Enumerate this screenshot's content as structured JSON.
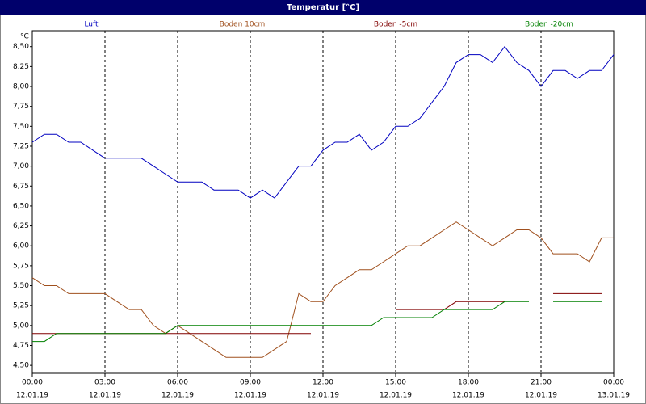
{
  "chart_data": {
    "type": "line",
    "title": "Temperatur [°C]",
    "y_label": "°C",
    "x": [
      0,
      0.5,
      1,
      1.5,
      2,
      2.5,
      3,
      3.5,
      4,
      4.5,
      5,
      5.5,
      6,
      6.5,
      7,
      7.5,
      8,
      8.5,
      9,
      9.5,
      10,
      10.5,
      11,
      11.5,
      12,
      12.5,
      13,
      13.5,
      14,
      14.5,
      15,
      15.5,
      16,
      16.5,
      17,
      17.5,
      18,
      18.5,
      19,
      19.5,
      20,
      20.5,
      21,
      21.5,
      22,
      22.5,
      23,
      23.5,
      24
    ],
    "series": [
      {
        "name": "Luft",
        "color": "#0000c0",
        "values": [
          7.3,
          7.4,
          7.4,
          7.3,
          7.3,
          7.2,
          7.1,
          7.1,
          7.1,
          7.1,
          7.0,
          6.9,
          6.8,
          6.8,
          6.8,
          6.7,
          6.7,
          6.7,
          6.6,
          6.7,
          6.6,
          6.8,
          7.0,
          7.0,
          7.2,
          7.3,
          7.3,
          7.4,
          7.2,
          7.3,
          7.5,
          7.5,
          7.6,
          7.8,
          8.0,
          8.3,
          8.4,
          8.4,
          8.3,
          8.5,
          8.3,
          8.2,
          8.0,
          8.2,
          8.2,
          8.1,
          8.2,
          8.2,
          8.4
        ]
      },
      {
        "name": "Boden 10cm",
        "color": "#a0501e",
        "values": [
          5.6,
          5.5,
          5.5,
          5.4,
          5.4,
          5.4,
          5.4,
          5.3,
          5.2,
          5.2,
          5.0,
          4.9,
          5.0,
          4.9,
          4.8,
          4.7,
          4.6,
          4.6,
          4.6,
          4.6,
          4.7,
          4.8,
          5.4,
          5.3,
          5.3,
          5.5,
          5.6,
          5.7,
          5.7,
          5.8,
          5.9,
          6.0,
          6.0,
          6.1,
          6.2,
          6.3,
          6.2,
          6.1,
          6.0,
          6.1,
          6.2,
          6.2,
          6.1,
          5.9,
          5.9,
          5.9,
          5.8,
          6.1,
          6.1
        ]
      },
      {
        "name": "Boden -5cm",
        "color": "#800000",
        "values": [
          4.9,
          4.9,
          4.9,
          4.9,
          4.9,
          4.9,
          4.9,
          4.9,
          4.9,
          4.9,
          4.9,
          4.9,
          4.9,
          4.9,
          4.9,
          4.9,
          4.9,
          4.9,
          4.9,
          4.9,
          4.9,
          4.9,
          4.9,
          4.9,
          null,
          null,
          null,
          null,
          null,
          null,
          5.2,
          5.2,
          5.2,
          5.2,
          5.2,
          5.3,
          5.3,
          5.3,
          5.3,
          5.3,
          null,
          null,
          null,
          5.4,
          5.4,
          5.4,
          5.4,
          5.4,
          null
        ]
      },
      {
        "name": "Boden -20cm",
        "color": "#008000",
        "values": [
          4.8,
          4.8,
          4.9,
          4.9,
          4.9,
          4.9,
          4.9,
          4.9,
          4.9,
          4.9,
          4.9,
          4.9,
          5.0,
          5.0,
          5.0,
          5.0,
          5.0,
          5.0,
          5.0,
          5.0,
          5.0,
          5.0,
          5.0,
          5.0,
          5.0,
          5.0,
          5.0,
          5.0,
          5.0,
          5.1,
          5.1,
          5.1,
          5.1,
          5.1,
          5.2,
          5.2,
          5.2,
          5.2,
          5.2,
          5.3,
          5.3,
          5.3,
          null,
          5.3,
          5.3,
          5.3,
          5.3,
          5.3,
          null
        ]
      }
    ],
    "xlim": [
      0,
      24
    ],
    "xticks": [
      {
        "value": 0,
        "label": "00:00"
      },
      {
        "value": 3,
        "label": "03:00"
      },
      {
        "value": 6,
        "label": "06:00"
      },
      {
        "value": 9,
        "label": "09:00"
      },
      {
        "value": 12,
        "label": "12:00"
      },
      {
        "value": 15,
        "label": "15:00"
      },
      {
        "value": 18,
        "label": "18:00"
      },
      {
        "value": 21,
        "label": "21:00"
      },
      {
        "value": 24,
        "label": "00:00"
      }
    ],
    "xtick_dates": [
      "12.01.19",
      "12.01.19",
      "12.01.19",
      "12.01.19",
      "12.01.19",
      "12.01.19",
      "12.01.19",
      "12.01.19",
      "13.01.19"
    ],
    "ylim": [
      4.4,
      8.7
    ],
    "yticks": [
      {
        "value": 4.5,
        "label": "4,50"
      },
      {
        "value": 4.75,
        "label": "4,75"
      },
      {
        "value": 5,
        "label": "5,00"
      },
      {
        "value": 5.25,
        "label": "5,25"
      },
      {
        "value": 5.5,
        "label": "5,50"
      },
      {
        "value": 5.75,
        "label": "5,75"
      },
      {
        "value": 6,
        "label": "6,00"
      },
      {
        "value": 6.25,
        "label": "6,25"
      },
      {
        "value": 6.5,
        "label": "6,50"
      },
      {
        "value": 6.75,
        "label": "6,75"
      },
      {
        "value": 7,
        "label": "7,00"
      },
      {
        "value": 7.25,
        "label": "7,25"
      },
      {
        "value": 7.5,
        "label": "7,50"
      },
      {
        "value": 7.75,
        "label": "7,75"
      },
      {
        "value": 8,
        "label": "8,00"
      },
      {
        "value": 8.25,
        "label": "8,25"
      },
      {
        "value": 8.5,
        "label": "8,50"
      }
    ],
    "grid": "x"
  }
}
